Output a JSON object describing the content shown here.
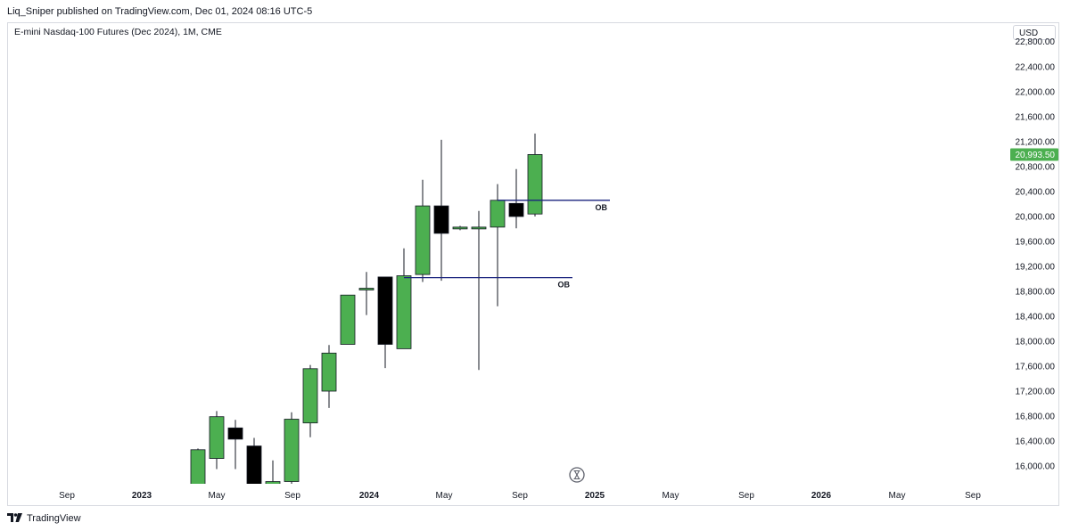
{
  "header": {
    "publisher_line": "Liq_Sniper published on TradingView.com, Dec 01, 2024 08:16 UTC-5"
  },
  "symbol_line": "E-mini Nasdaq-100 Futures (Dec 2024), 1M, CME",
  "currency_button": "USD",
  "footer": {
    "brand": "TradingView",
    "logo_icon": "tradingview-logo-icon"
  },
  "colors": {
    "up": "#4caf50",
    "down": "#000000",
    "ob_line": "#1a237e",
    "price_tag": "#4caf50"
  },
  "chart_data": {
    "type": "candlestick",
    "interval": "1M",
    "yaxis": {
      "ticks": [
        16000,
        16400,
        16800,
        17200,
        17600,
        18000,
        18400,
        18800,
        19200,
        19600,
        20000,
        20400,
        20800,
        21200,
        21600,
        22000,
        22400
      ],
      "tick_labels": [
        "16,000.00",
        "16,400.00",
        "16,800.00",
        "17,200.00",
        "17,600.00",
        "18,000.00",
        "18,400.00",
        "18,800.00",
        "19,200.00",
        "19,600.00",
        "20,000.00",
        "20,400.00",
        "20,800.00",
        "21,200.00",
        "21,600.00",
        "22,000.00",
        "22,400.00"
      ],
      "top_partial_label": "22,800.00"
    },
    "xaxis": {
      "labels": [
        "Sep",
        "2023",
        "May",
        "Sep",
        "2024",
        "May",
        "Sep",
        "2025",
        "May",
        "Sep",
        "2026",
        "May",
        "Sep"
      ],
      "bold": [
        false,
        true,
        false,
        false,
        true,
        false,
        false,
        true,
        false,
        false,
        true,
        false,
        false
      ]
    },
    "candles": [
      {
        "month": "2023-04",
        "open": 15650,
        "high": 16280,
        "low": 15500,
        "close": 16260
      },
      {
        "month": "2023-05",
        "open": 16120,
        "high": 16880,
        "low": 15950,
        "close": 16790
      },
      {
        "month": "2023-06",
        "open": 16610,
        "high": 16740,
        "low": 15950,
        "close": 16430
      },
      {
        "month": "2023-07",
        "open": 16320,
        "high": 16450,
        "low": 15600,
        "close": 15650
      },
      {
        "month": "2023-08",
        "open": 15650,
        "high": 16090,
        "low": 15700,
        "close": 15750
      },
      {
        "month": "2023-09",
        "open": 15750,
        "high": 16860,
        "low": 15650,
        "close": 16750
      },
      {
        "month": "2023-10",
        "open": 16690,
        "high": 17620,
        "low": 16460,
        "close": 17560
      },
      {
        "month": "2023-11",
        "open": 17200,
        "high": 17940,
        "low": 16930,
        "close": 17810
      },
      {
        "month": "2023-12",
        "open": 17950,
        "high": 18740,
        "low": 17950,
        "close": 18740
      },
      {
        "month": "2024-01",
        "open": 18850,
        "high": 19110,
        "low": 18420,
        "close": 18850
      },
      {
        "month": "2024-02",
        "open": 19030,
        "high": 19030,
        "low": 17570,
        "close": 17950
      },
      {
        "month": "2024-03",
        "open": 17880,
        "high": 19490,
        "low": 17880,
        "close": 19050
      },
      {
        "month": "2024-04",
        "open": 19070,
        "high": 20590,
        "low": 18950,
        "close": 20170
      },
      {
        "month": "2024-05",
        "open": 20170,
        "high": 21230,
        "low": 18970,
        "close": 19730
      },
      {
        "month": "2024-06",
        "open": 19810,
        "high": 19850,
        "low": 19780,
        "close": 19830
      },
      {
        "month": "2024-07",
        "open": 19820,
        "high": 20090,
        "low": 17540,
        "close": 19830
      },
      {
        "month": "2024-08",
        "open": 19830,
        "high": 20520,
        "low": 18560,
        "close": 20260
      },
      {
        "month": "2024-09",
        "open": 20210,
        "high": 20760,
        "low": 19810,
        "close": 20000
      },
      {
        "month": "2024-10",
        "open": 20040,
        "high": 21330,
        "low": 20000,
        "close": 20993.5
      }
    ],
    "last_price": 20993.5,
    "last_price_label": "20,993.50",
    "annotations": [
      {
        "label": "OB",
        "price": 20260,
        "from": "2024-08",
        "to": "2025-02"
      },
      {
        "label": "OB",
        "price": 19020,
        "from": "2024-03",
        "to": "2024-12"
      }
    ]
  }
}
